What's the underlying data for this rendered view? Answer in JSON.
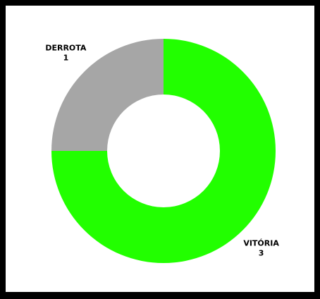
{
  "chart_data": {
    "type": "pie",
    "categories": [
      "VITÓRIA",
      "DERROTA"
    ],
    "values": [
      3,
      1
    ],
    "colors": [
      "#22ff00",
      "#a6a6a6"
    ],
    "donut": true
  }
}
